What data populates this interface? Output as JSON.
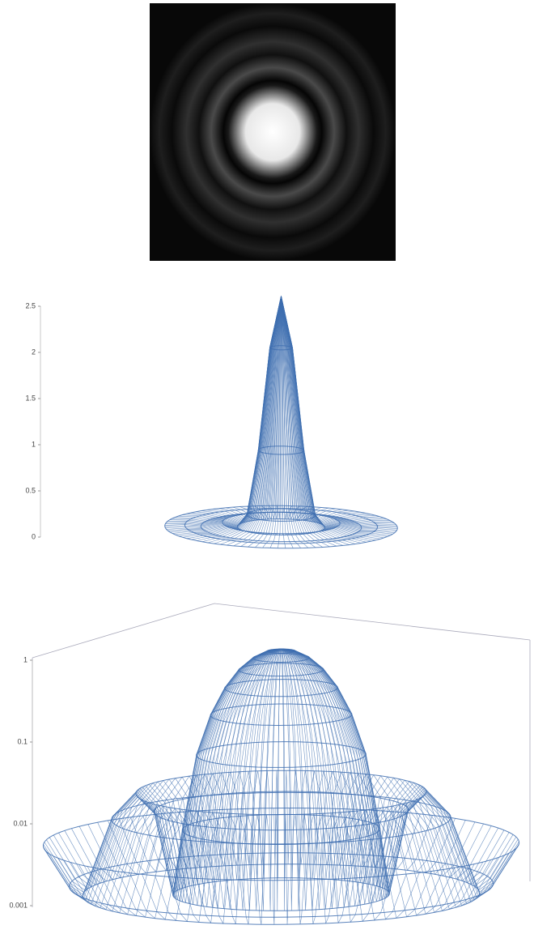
{
  "chart_data": [
    {
      "type": "surface",
      "x": [
        0,
        1,
        2,
        3,
        3.83,
        5.14,
        7.02,
        8.42,
        10.17
      ],
      "values": [
        2.5,
        1.94,
        0.83,
        0.13,
        0,
        0.044,
        0,
        0.01,
        0
      ],
      "color": "#3f6fb0",
      "ylim": [
        0,
        2.5
      ],
      "yticks": [
        0,
        0.5,
        1,
        1.5,
        2,
        2.5
      ]
    },
    {
      "type": "surface",
      "log_scale": true,
      "x": [
        0,
        0.5,
        1,
        1.5,
        2,
        2.5,
        3,
        3.5,
        3.83,
        4.5,
        5.14,
        6,
        7.02,
        7.5,
        8.42
      ],
      "values": [
        1,
        0.939,
        0.775,
        0.557,
        0.333,
        0.157,
        0.051,
        0.0062,
        0.001,
        0.0105,
        0.0175,
        0.0085,
        0.001,
        0.0013,
        0.0041
      ],
      "color": "#3f6fb0",
      "ylim": [
        0.001,
        1
      ],
      "yticks": [
        0.001,
        0.01,
        0.1,
        1
      ]
    }
  ]
}
